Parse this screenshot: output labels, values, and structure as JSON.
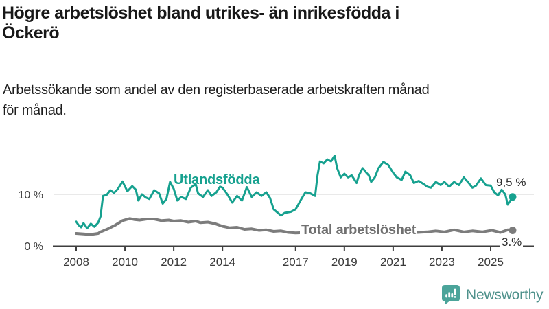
{
  "title": "Högre arbetslöshet bland utrikes- än inrikesfödda i\nÖckerö",
  "subtitle": "Arbetssökande som andel av den registerbaserade arbetskraften månad\nför månad.",
  "labels": {
    "foreign_series": "Utlandsfödda",
    "total_series": "Total arbetslöshet",
    "foreign_last_value": "9,5 %",
    "total_last_value": "3.%"
  },
  "logo": {
    "text": "Newsworthy"
  },
  "colors": {
    "foreign_series": "#16a18f",
    "total_series": "#7c7c7c",
    "grid": "#e2e2e2",
    "axis": "#3e3e3e",
    "axis_text": "#3a3a3a",
    "logo_icon": "#4ba49a",
    "logo_text": "#4e918b"
  },
  "chart_data": {
    "type": "line",
    "title": "Högre arbetslöshet bland utrikes- än inrikesfödda i Öckerö",
    "xlabel": "",
    "ylabel": "Arbetssökande som andel av den registerbaserade arbetskraften (%)",
    "x_unit": "decimal_year",
    "y_unit": "percent",
    "xlim": [
      2008,
      2025.9
    ],
    "ylim": [
      0,
      18
    ],
    "grid": "single-horizontal-gridline-at-10",
    "legend_position": "inline-labels-on-lines",
    "x_ticks": [
      2008,
      2010,
      2012,
      2014,
      2017,
      2019,
      2021,
      2023,
      2025
    ],
    "x_tick_labels": [
      "2008",
      "2010",
      "2012",
      "2014",
      "2017",
      "2019",
      "2021",
      "2023",
      "2025"
    ],
    "y_ticks": [
      {
        "value": 10,
        "label": "10 %"
      },
      {
        "value": 0,
        "label": "0 %"
      }
    ],
    "series": [
      {
        "name": "Total arbetslöshet",
        "color": "#7c7c7c",
        "stroke_width": 4,
        "last_value_label": "3.%",
        "points": [
          [
            2008.0,
            2.4
          ],
          [
            2008.3,
            2.3
          ],
          [
            2008.6,
            2.2
          ],
          [
            2008.9,
            2.4
          ],
          [
            2009.0,
            2.7
          ],
          [
            2009.3,
            3.3
          ],
          [
            2009.6,
            4.0
          ],
          [
            2009.9,
            4.9
          ],
          [
            2010.2,
            5.3
          ],
          [
            2010.4,
            5.1
          ],
          [
            2010.6,
            5.0
          ],
          [
            2010.9,
            5.2
          ],
          [
            2011.2,
            5.2
          ],
          [
            2011.5,
            4.9
          ],
          [
            2011.8,
            5.0
          ],
          [
            2012.0,
            4.8
          ],
          [
            2012.3,
            4.9
          ],
          [
            2012.6,
            4.6
          ],
          [
            2012.9,
            4.8
          ],
          [
            2013.1,
            4.5
          ],
          [
            2013.4,
            4.6
          ],
          [
            2013.7,
            4.3
          ],
          [
            2014.0,
            3.8
          ],
          [
            2014.3,
            3.5
          ],
          [
            2014.6,
            3.6
          ],
          [
            2014.9,
            3.2
          ],
          [
            2015.2,
            3.3
          ],
          [
            2015.5,
            3.0
          ],
          [
            2015.8,
            3.1
          ],
          [
            2016.1,
            2.8
          ],
          [
            2016.4,
            2.9
          ],
          [
            2016.7,
            2.6
          ],
          [
            2017.0,
            2.5
          ],
          [
            2017.5,
            2.6
          ],
          [
            2018.0,
            2.5
          ],
          [
            2018.5,
            2.6
          ],
          [
            2019.0,
            2.5
          ],
          [
            2019.5,
            2.6
          ],
          [
            2020.0,
            2.8
          ],
          [
            2020.5,
            3.0
          ],
          [
            2021.0,
            2.8
          ],
          [
            2021.5,
            2.7
          ],
          [
            2022.0,
            2.6
          ],
          [
            2022.4,
            2.7
          ],
          [
            2022.75,
            2.9
          ],
          [
            2023.1,
            2.7
          ],
          [
            2023.5,
            3.1
          ],
          [
            2023.9,
            2.7
          ],
          [
            2024.25,
            2.9
          ],
          [
            2024.65,
            2.7
          ],
          [
            2025.05,
            3.0
          ],
          [
            2025.4,
            2.6
          ],
          [
            2025.7,
            3.1
          ],
          [
            2025.9,
            3.0
          ]
        ]
      },
      {
        "name": "Utlandsfödda",
        "color": "#16a18f",
        "stroke_width": 3,
        "last_value_label": "9,5 %",
        "points": [
          [
            2008.0,
            4.7
          ],
          [
            2008.1,
            4.0
          ],
          [
            2008.2,
            3.6
          ],
          [
            2008.3,
            4.4
          ],
          [
            2008.45,
            3.4
          ],
          [
            2008.6,
            4.3
          ],
          [
            2008.75,
            3.7
          ],
          [
            2008.9,
            4.5
          ],
          [
            2009.0,
            5.7
          ],
          [
            2009.1,
            9.7
          ],
          [
            2009.25,
            9.9
          ],
          [
            2009.4,
            10.8
          ],
          [
            2009.55,
            10.3
          ],
          [
            2009.7,
            11.0
          ],
          [
            2009.9,
            12.5
          ],
          [
            2010.1,
            10.6
          ],
          [
            2010.3,
            11.6
          ],
          [
            2010.45,
            10.9
          ],
          [
            2010.55,
            8.8
          ],
          [
            2010.7,
            10.0
          ],
          [
            2010.85,
            9.4
          ],
          [
            2011.0,
            9.1
          ],
          [
            2011.2,
            10.8
          ],
          [
            2011.4,
            10.2
          ],
          [
            2011.55,
            8.2
          ],
          [
            2011.7,
            9.1
          ],
          [
            2011.85,
            12.4
          ],
          [
            2012.0,
            11.1
          ],
          [
            2012.15,
            8.8
          ],
          [
            2012.3,
            9.5
          ],
          [
            2012.5,
            9.1
          ],
          [
            2012.7,
            11.3
          ],
          [
            2012.9,
            12.0
          ],
          [
            2013.0,
            10.2
          ],
          [
            2013.2,
            9.5
          ],
          [
            2013.4,
            10.8
          ],
          [
            2013.55,
            9.7
          ],
          [
            2013.75,
            10.4
          ],
          [
            2013.9,
            11.5
          ],
          [
            2014.0,
            11.3
          ],
          [
            2014.2,
            10.0
          ],
          [
            2014.4,
            8.4
          ],
          [
            2014.6,
            9.7
          ],
          [
            2014.8,
            8.8
          ],
          [
            2015.0,
            11.4
          ],
          [
            2015.2,
            9.5
          ],
          [
            2015.4,
            10.4
          ],
          [
            2015.6,
            9.7
          ],
          [
            2015.8,
            10.4
          ],
          [
            2015.95,
            9.3
          ],
          [
            2016.1,
            7.1
          ],
          [
            2016.4,
            5.9
          ],
          [
            2016.55,
            6.4
          ],
          [
            2016.8,
            6.6
          ],
          [
            2017.0,
            7.1
          ],
          [
            2017.2,
            8.8
          ],
          [
            2017.4,
            10.4
          ],
          [
            2017.6,
            10.2
          ],
          [
            2017.8,
            9.7
          ],
          [
            2017.9,
            13.7
          ],
          [
            2018.0,
            16.4
          ],
          [
            2018.15,
            16.0
          ],
          [
            2018.3,
            16.8
          ],
          [
            2018.45,
            16.4
          ],
          [
            2018.6,
            17.5
          ],
          [
            2018.7,
            15.1
          ],
          [
            2018.85,
            13.3
          ],
          [
            2019.0,
            14.0
          ],
          [
            2019.15,
            13.3
          ],
          [
            2019.3,
            13.7
          ],
          [
            2019.5,
            12.2
          ],
          [
            2019.6,
            13.7
          ],
          [
            2019.75,
            15.1
          ],
          [
            2019.9,
            14.2
          ],
          [
            2020.0,
            13.7
          ],
          [
            2020.1,
            12.4
          ],
          [
            2020.25,
            13.3
          ],
          [
            2020.4,
            15.1
          ],
          [
            2020.6,
            16.3
          ],
          [
            2020.8,
            15.7
          ],
          [
            2021.0,
            14.2
          ],
          [
            2021.15,
            13.3
          ],
          [
            2021.35,
            12.8
          ],
          [
            2021.5,
            14.4
          ],
          [
            2021.7,
            13.7
          ],
          [
            2021.85,
            12.2
          ],
          [
            2022.05,
            12.6
          ],
          [
            2022.25,
            12.0
          ],
          [
            2022.4,
            11.5
          ],
          [
            2022.55,
            11.3
          ],
          [
            2022.75,
            12.4
          ],
          [
            2022.95,
            11.8
          ],
          [
            2023.1,
            12.4
          ],
          [
            2023.3,
            11.5
          ],
          [
            2023.5,
            12.4
          ],
          [
            2023.7,
            11.8
          ],
          [
            2023.9,
            13.3
          ],
          [
            2024.1,
            12.2
          ],
          [
            2024.25,
            11.3
          ],
          [
            2024.4,
            11.7
          ],
          [
            2024.6,
            13.1
          ],
          [
            2024.8,
            11.8
          ],
          [
            2025.0,
            11.7
          ],
          [
            2025.15,
            10.4
          ],
          [
            2025.3,
            9.8
          ],
          [
            2025.45,
            10.9
          ],
          [
            2025.6,
            10.0
          ],
          [
            2025.7,
            8.0
          ],
          [
            2025.9,
            9.5
          ]
        ]
      }
    ]
  }
}
